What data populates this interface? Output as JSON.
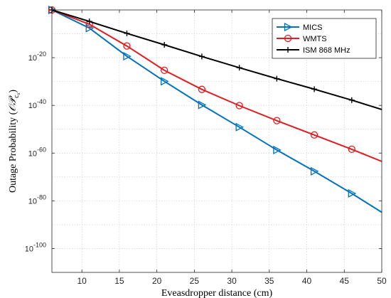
{
  "chart_data": {
    "type": "line",
    "xlabel": "Eveasdropper distance (cm)",
    "ylabel_main": "Outage Probability (",
    "ylabel_sym": "𝒪𝒫",
    "ylabel_sub": "c",
    "ylabel_subsub": "s",
    "ylabel_end": ")",
    "y_scale": "log",
    "xlim": [
      6,
      50
    ],
    "ylim_exp": [
      -110,
      0
    ],
    "x_ticks": [
      10,
      15,
      20,
      25,
      30,
      35,
      40,
      45,
      50
    ],
    "y_ticks": [
      {
        "exp": -100,
        "base": "10",
        "sup": "-100"
      },
      {
        "exp": -80,
        "base": "10",
        "sup": "-80"
      },
      {
        "exp": -60,
        "base": "10",
        "sup": "-60"
      },
      {
        "exp": -40,
        "base": "10",
        "sup": "-40"
      },
      {
        "exp": -20,
        "base": "10",
        "sup": "-20"
      }
    ],
    "grid": true,
    "legend_position": "top-right",
    "series": [
      {
        "name": "MICS",
        "color": "#0072BD",
        "marker": "triangle-right",
        "x": [
          6,
          11,
          16,
          21,
          26,
          31,
          36,
          41,
          46,
          50
        ],
        "log10_y": [
          0,
          -7.6,
          -19.4,
          -29.9,
          -39.8,
          -49.1,
          -58.7,
          -67.6,
          -76.9,
          -84.8
        ]
      },
      {
        "name": "WMTS",
        "color": "#E41A1C",
        "marker": "circle",
        "x": [
          6,
          11,
          16,
          21,
          26,
          31,
          36,
          41,
          46,
          50
        ],
        "log10_y": [
          0,
          -6.0,
          -15.1,
          -25.3,
          -33.3,
          -40.1,
          -46.4,
          -52.4,
          -58.4,
          -63.5
        ]
      },
      {
        "name": "ISM 868 MHz",
        "color": "#000000",
        "marker": "plus",
        "x": [
          6,
          11,
          16,
          21,
          26,
          31,
          36,
          41,
          46,
          50
        ],
        "log10_y": [
          0,
          -4.8,
          -9.8,
          -14.6,
          -19.5,
          -24.2,
          -28.8,
          -33.2,
          -37.8,
          -41.7
        ]
      }
    ]
  }
}
